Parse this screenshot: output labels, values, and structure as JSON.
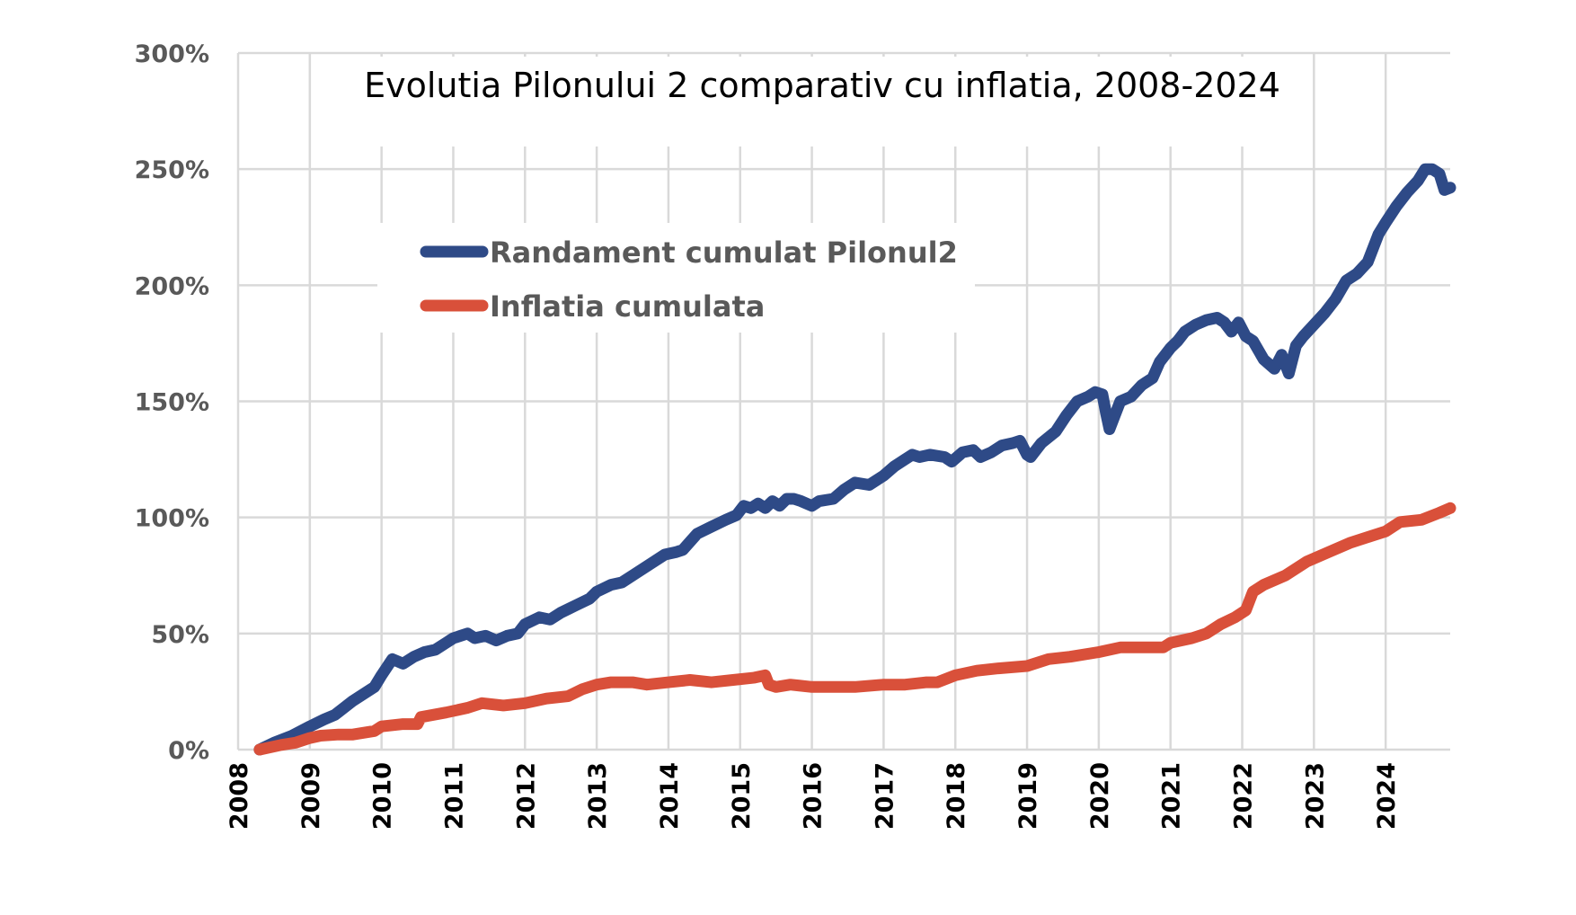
{
  "chart_data": {
    "type": "line",
    "title": "Evolutia Pilonului 2 comparativ cu inflatia, 2008-2024",
    "xlabel": "",
    "ylabel": "",
    "xlim": [
      2008.0,
      2024.9
    ],
    "ylim": [
      0,
      300
    ],
    "y_ticks": [
      "0%",
      "50%",
      "100%",
      "150%",
      "200%",
      "250%",
      "300%"
    ],
    "x_ticks": [
      "2008",
      "2009",
      "2010",
      "2011",
      "2012",
      "2013",
      "2014",
      "2015",
      "2016",
      "2017",
      "2018",
      "2019",
      "2020",
      "2021",
      "2022",
      "2023",
      "2024"
    ],
    "grid": true,
    "legend_position": "top-left",
    "series": [
      {
        "name": "Randament cumulat Pilonul2",
        "color": "#2e4a87",
        "x": [
          2008.3,
          2008.5,
          2008.75,
          2009.0,
          2009.2,
          2009.35,
          2009.6,
          2009.9,
          2010.0,
          2010.15,
          2010.3,
          2010.45,
          2010.6,
          2010.75,
          2010.9,
          2011.0,
          2011.2,
          2011.3,
          2011.45,
          2011.6,
          2011.75,
          2011.9,
          2012.0,
          2012.2,
          2012.35,
          2012.5,
          2012.7,
          2012.9,
          2013.0,
          2013.2,
          2013.35,
          2013.55,
          2013.75,
          2013.95,
          2014.1,
          2014.2,
          2014.4,
          2014.6,
          2014.8,
          2014.95,
          2015.05,
          2015.15,
          2015.25,
          2015.35,
          2015.45,
          2015.55,
          2015.65,
          2015.75,
          2015.85,
          2016.0,
          2016.1,
          2016.3,
          2016.45,
          2016.6,
          2016.8,
          2017.0,
          2017.15,
          2017.3,
          2017.4,
          2017.5,
          2017.65,
          2017.85,
          2017.95,
          2018.1,
          2018.25,
          2018.35,
          2018.5,
          2018.65,
          2018.8,
          2018.9,
          2019.0,
          2019.05,
          2019.2,
          2019.4,
          2019.55,
          2019.7,
          2019.85,
          2019.95,
          2020.05,
          2020.1,
          2020.15,
          2020.2,
          2020.3,
          2020.45,
          2020.6,
          2020.75,
          2020.85,
          2021.0,
          2021.1,
          2021.2,
          2021.35,
          2021.5,
          2021.65,
          2021.75,
          2021.85,
          2021.95,
          2022.05,
          2022.15,
          2022.3,
          2022.45,
          2022.55,
          2022.65,
          2022.75,
          2022.85,
          2023.0,
          2023.15,
          2023.3,
          2023.45,
          2023.6,
          2023.75,
          2023.9,
          2024.0,
          2024.15,
          2024.3,
          2024.45,
          2024.55,
          2024.65,
          2024.75,
          2024.82,
          2024.9
        ],
        "values": [
          0,
          3,
          6,
          10,
          13,
          15,
          21,
          27,
          32,
          39,
          37,
          40,
          42,
          43,
          46,
          48,
          50,
          48,
          49,
          47,
          49,
          50,
          54,
          57,
          56,
          59,
          62,
          65,
          68,
          71,
          72,
          76,
          80,
          84,
          85,
          86,
          93,
          96,
          99,
          101,
          105,
          104,
          106,
          104,
          107,
          105,
          108,
          108,
          107,
          105,
          107,
          108,
          112,
          115,
          114,
          118,
          122,
          125,
          127,
          126,
          127,
          126,
          124,
          128,
          129,
          126,
          128,
          131,
          132,
          133,
          127,
          126,
          132,
          137,
          144,
          150,
          152,
          154,
          153,
          145,
          138,
          142,
          150,
          152,
          157,
          160,
          167,
          173,
          176,
          180,
          183,
          185,
          186,
          184,
          180,
          184,
          178,
          176,
          168,
          164,
          170,
          162,
          174,
          178,
          183,
          188,
          194,
          202,
          205,
          210,
          222,
          227,
          234,
          240,
          245,
          250,
          250,
          248,
          241,
          242
        ]
      },
      {
        "name": "Inflatia cumulata",
        "color": "#d9503a",
        "x": [
          2008.3,
          2008.6,
          2008.8,
          2009.0,
          2009.15,
          2009.4,
          2009.6,
          2009.9,
          2010.0,
          2010.3,
          2010.5,
          2010.55,
          2010.9,
          2011.2,
          2011.4,
          2011.7,
          2012.0,
          2012.3,
          2012.6,
          2012.8,
          2013.0,
          2013.2,
          2013.5,
          2013.7,
          2014.0,
          2014.3,
          2014.6,
          2014.9,
          2015.2,
          2015.35,
          2015.4,
          2015.5,
          2015.7,
          2016.0,
          2016.3,
          2016.6,
          2017.0,
          2017.3,
          2017.6,
          2017.75,
          2018.0,
          2018.3,
          2018.6,
          2019.0,
          2019.3,
          2019.6,
          2020.0,
          2020.3,
          2020.6,
          2020.9,
          2021.0,
          2021.3,
          2021.5,
          2021.7,
          2021.9,
          2022.05,
          2022.15,
          2022.3,
          2022.6,
          2022.9,
          2023.2,
          2023.5,
          2023.8,
          2024.0,
          2024.2,
          2024.5,
          2024.75,
          2024.9
        ],
        "values": [
          0,
          2,
          3,
          5,
          6,
          6.5,
          6.5,
          8,
          10,
          11,
          11,
          14,
          16,
          18,
          20,
          19,
          20,
          22,
          23,
          26,
          28,
          29,
          29,
          28,
          29,
          30,
          29,
          30,
          31,
          32,
          28,
          27,
          28,
          27,
          27,
          27,
          28,
          28,
          29,
          29,
          32,
          34,
          35,
          36,
          39,
          40,
          42,
          44,
          44,
          44,
          46,
          48,
          50,
          54,
          57,
          60,
          68,
          71,
          75,
          81,
          85,
          89,
          92,
          94,
          98,
          99,
          102,
          104
        ]
      }
    ]
  }
}
